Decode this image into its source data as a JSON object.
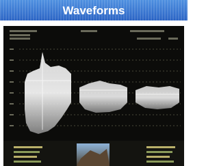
{
  "header": {
    "title": "Waveforms"
  }
}
